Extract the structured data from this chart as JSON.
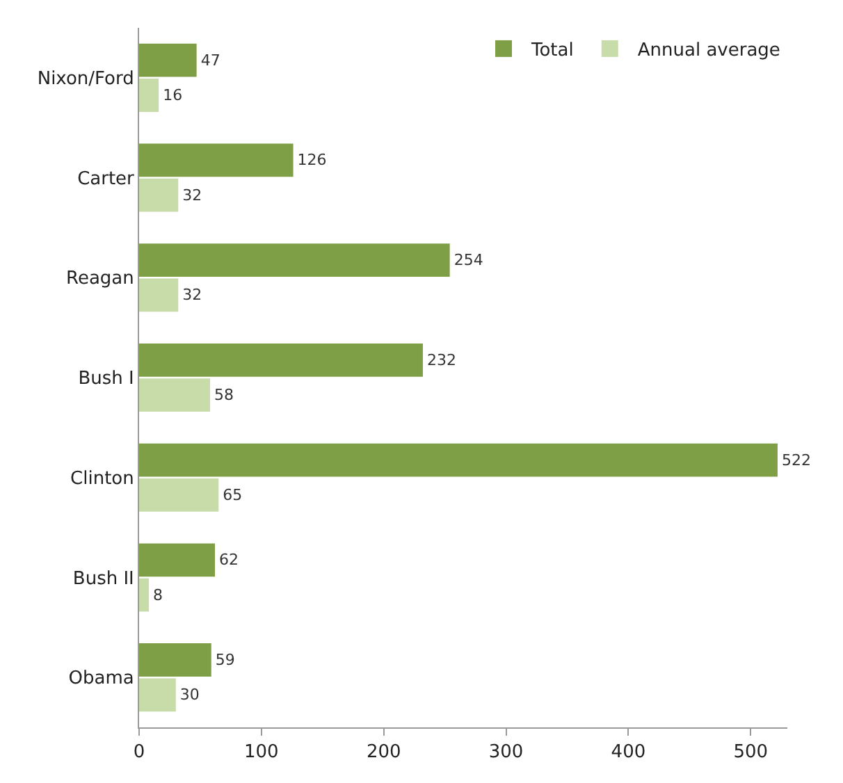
{
  "chart_data": {
    "type": "bar",
    "orientation": "horizontal",
    "categories": [
      "Nixon/Ford",
      "Carter",
      "Reagan",
      "Bush I",
      "Clinton",
      "Bush II",
      "Obama"
    ],
    "series": [
      {
        "name": "Total",
        "color": "#7f9f46",
        "values": [
          47,
          126,
          254,
          232,
          522,
          62,
          59
        ]
      },
      {
        "name": "Annual average",
        "color": "#c8dcaa",
        "values": [
          16,
          32,
          32,
          58,
          65,
          8,
          30
        ]
      }
    ],
    "xlim": [
      0,
      530
    ],
    "xticks": [
      0,
      100,
      200,
      300,
      400,
      500
    ],
    "data_labels": true,
    "legend": "top right",
    "grid": false
  }
}
